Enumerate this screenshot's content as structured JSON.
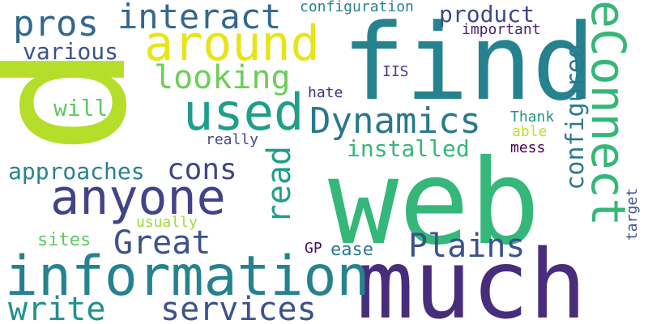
{
  "words": [
    {
      "text": "find",
      "color": "#26828e"
    },
    {
      "text": "web",
      "color": "#35b779"
    },
    {
      "text": "much",
      "color": "#472d7b"
    },
    {
      "text": "information",
      "color": "#26828e"
    },
    {
      "text": "p",
      "color": "#b5de2b"
    },
    {
      "text": "anyone",
      "color": "#414487"
    },
    {
      "text": "around",
      "color": "#e7e419"
    },
    {
      "text": "used",
      "color": "#1f9e89"
    },
    {
      "text": "interact",
      "color": "#31688e"
    },
    {
      "text": "eConnect",
      "color": "#35b779"
    },
    {
      "text": "Dynamics",
      "color": "#2a788e"
    },
    {
      "text": "Plains",
      "color": "#3b528b"
    },
    {
      "text": "services",
      "color": "#3b528b"
    },
    {
      "text": "write",
      "color": "#21918c"
    },
    {
      "text": "Great",
      "color": "#3b528b"
    },
    {
      "text": "pros",
      "color": "#31688e"
    },
    {
      "text": "looking",
      "color": "#6ece58"
    },
    {
      "text": "read",
      "color": "#1f9e89"
    },
    {
      "text": "cons",
      "color": "#414487"
    },
    {
      "text": "configured",
      "color": "#2a788e"
    },
    {
      "text": "installed",
      "color": "#35b779"
    },
    {
      "text": "approaches",
      "color": "#26828e"
    },
    {
      "text": "product",
      "color": "#3e4a89"
    },
    {
      "text": "various",
      "color": "#3b528b"
    },
    {
      "text": "will",
      "color": "#5ec962"
    },
    {
      "text": "configuration",
      "color": "#26828e"
    },
    {
      "text": "important",
      "color": "#482173"
    },
    {
      "text": "sites",
      "color": "#5ec962"
    },
    {
      "text": "ease",
      "color": "#2a788e"
    },
    {
      "text": "hate",
      "color": "#46327e"
    },
    {
      "text": "IIS",
      "color": "#433e85"
    },
    {
      "text": "Thank",
      "color": "#21918c"
    },
    {
      "text": "able",
      "color": "#bddf26"
    },
    {
      "text": "mess",
      "color": "#440154"
    },
    {
      "text": "really",
      "color": "#3e4a89"
    },
    {
      "text": "usually",
      "color": "#a0da39"
    },
    {
      "text": "GP",
      "color": "#471164"
    },
    {
      "text": "target",
      "color": "#3b528b"
    }
  ]
}
